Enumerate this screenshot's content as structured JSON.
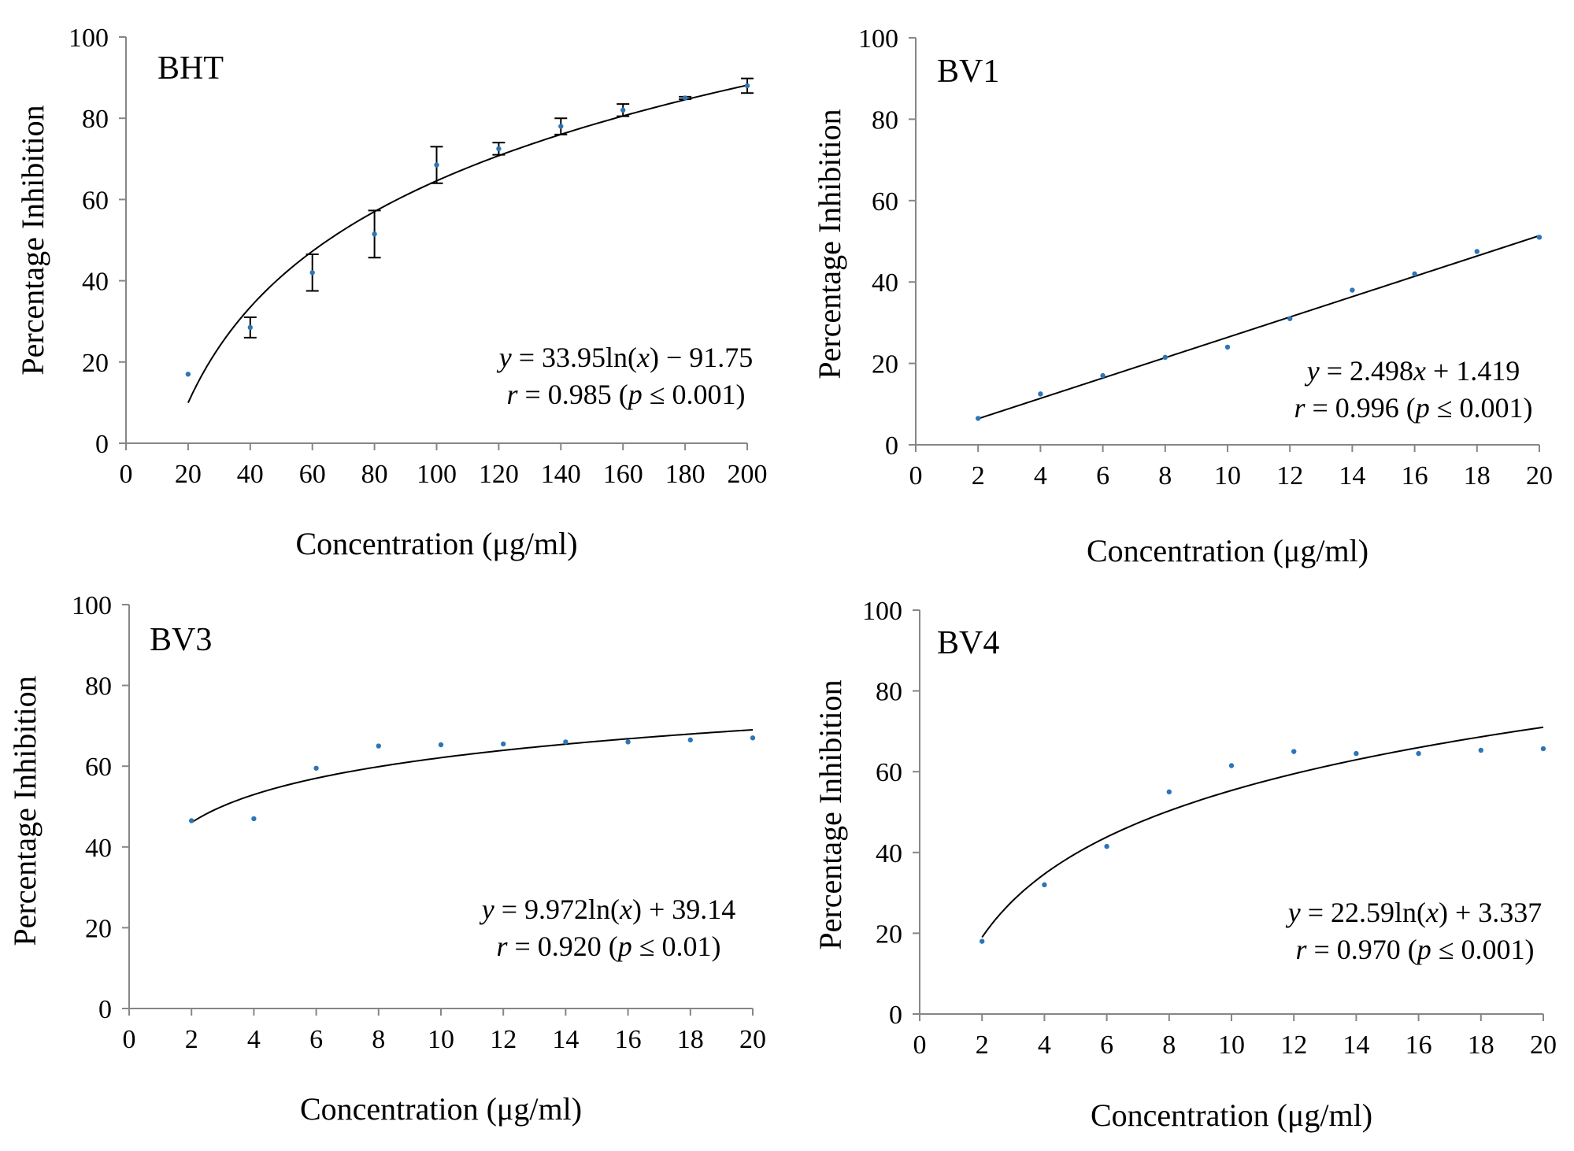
{
  "chart_data": [
    {
      "type": "scatter",
      "title": "BHT",
      "xlabel": "Concentration (μg/ml)",
      "ylabel": "Percentage Inhibition",
      "xlim": [
        0,
        200
      ],
      "ylim": [
        0,
        100
      ],
      "xticks": [
        0,
        20,
        40,
        60,
        80,
        100,
        120,
        140,
        160,
        180,
        200
      ],
      "yticks": [
        0,
        20,
        40,
        60,
        80,
        100
      ],
      "x": [
        20,
        40,
        60,
        80,
        100,
        120,
        140,
        160,
        180,
        200
      ],
      "y": [
        17,
        28.5,
        42,
        51.5,
        68.5,
        72.5,
        78,
        82,
        85,
        88
      ],
      "error": [
        0,
        2.5,
        4.5,
        5.8,
        4.5,
        1.5,
        2,
        1.5,
        0.3,
        1.8
      ],
      "fit": {
        "kind": "log",
        "a": 33.95,
        "b": -91.75
      },
      "equation": {
        "y": "y",
        "eq_rest": " = 33.95ln(",
        "x": "x",
        "eq_close": ") − 91.75"
      },
      "stat": {
        "r": "r",
        "r_rest": " = 0.985  (",
        "p": "p",
        "p_rest": " ≤ 0.001)"
      }
    },
    {
      "type": "scatter",
      "title": "BV1",
      "xlabel": "Concentration (μg/ml)",
      "ylabel": "Percentage Inhibition",
      "xlim": [
        0,
        20
      ],
      "ylim": [
        0,
        100
      ],
      "xticks": [
        0,
        2,
        4,
        6,
        8,
        10,
        12,
        14,
        16,
        18,
        20
      ],
      "yticks": [
        0,
        20,
        40,
        60,
        80,
        100
      ],
      "x": [
        2,
        4,
        6,
        8,
        10,
        12,
        14,
        16,
        18,
        20
      ],
      "y": [
        6.5,
        12.5,
        17,
        21.5,
        24,
        31,
        38,
        42,
        47.5,
        51
      ],
      "error": [],
      "fit": {
        "kind": "linear",
        "a": 2.498,
        "b": 1.419
      },
      "equation": {
        "y": "y",
        "eq_rest": " = 2.498",
        "x": "x",
        "eq_close": " + 1.419"
      },
      "stat": {
        "r": "r",
        "r_rest": " = 0.996  (",
        "p": "p",
        "p_rest": " ≤ 0.001)"
      }
    },
    {
      "type": "scatter",
      "title": "BV3",
      "xlabel": "Concentration (μg/ml)",
      "ylabel": "Percentage Inhibition",
      "xlim": [
        0,
        20
      ],
      "ylim": [
        0,
        100
      ],
      "xticks": [
        0,
        2,
        4,
        6,
        8,
        10,
        12,
        14,
        16,
        18,
        20
      ],
      "yticks": [
        0,
        20,
        40,
        60,
        80,
        100
      ],
      "x": [
        2,
        4,
        6,
        8,
        10,
        12,
        14,
        16,
        18,
        20
      ],
      "y": [
        46.5,
        47,
        59.5,
        65,
        65.3,
        65.5,
        66,
        66,
        66.5,
        67
      ],
      "error": [],
      "fit": {
        "kind": "log",
        "a": 9.972,
        "b": 39.14
      },
      "equation": {
        "y": "y",
        "eq_rest": " = 9.972ln(",
        "x": "x",
        "eq_close": ") + 39.14"
      },
      "stat": {
        "r": "r",
        "r_rest": " = 0.920  (",
        "p": "p",
        "p_rest": " ≤ 0.01)"
      }
    },
    {
      "type": "scatter",
      "title": "BV4",
      "xlabel": "Concentration (μg/ml)",
      "ylabel": "Percentage Inhibition",
      "xlim": [
        0,
        20
      ],
      "ylim": [
        0,
        100
      ],
      "xticks": [
        0,
        2,
        4,
        6,
        8,
        10,
        12,
        14,
        16,
        18,
        20
      ],
      "yticks": [
        0,
        20,
        40,
        60,
        80,
        100
      ],
      "x": [
        2,
        4,
        6,
        8,
        10,
        12,
        14,
        16,
        18,
        20
      ],
      "y": [
        18,
        32,
        41.5,
        55,
        61.5,
        65,
        64.5,
        64.5,
        65.3,
        65.7
      ],
      "error": [],
      "fit": {
        "kind": "log",
        "a": 22.59,
        "b": 3.337
      },
      "equation": {
        "y": "y",
        "eq_rest": " = 22.59ln(",
        "x": "x",
        "eq_close": ") + 3.337"
      },
      "stat": {
        "r": "r",
        "r_rest": " = 0.970  (",
        "p": "p",
        "p_rest": " ≤ 0.001)"
      }
    }
  ]
}
